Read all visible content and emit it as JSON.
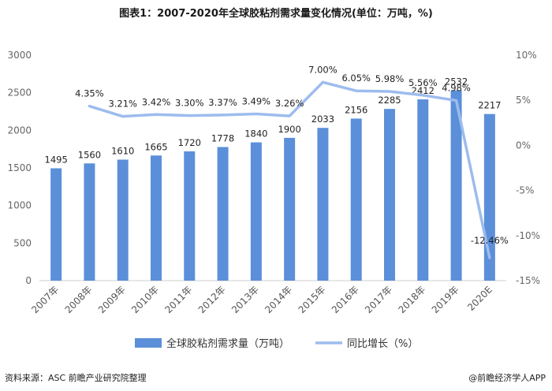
{
  "title": "图表1：2007-2020年全球胶粘剂需求量变化情况(单位：万吨，%)",
  "source": "资料来源：ASC 前瞻产业研究院整理",
  "brand": "@前瞻经济学人APP",
  "chart_data": {
    "type": "bar",
    "categories": [
      "2007年",
      "2008年",
      "2009年",
      "2010年",
      "2011年",
      "2012年",
      "2013年",
      "2014年",
      "2015年",
      "2016年",
      "2017年",
      "2018年",
      "2019年",
      "2020E"
    ],
    "series": [
      {
        "name": "全球胶粘剂需求量（万吨）",
        "type": "bar",
        "axis": "left",
        "values": [
          1495,
          1560,
          1610,
          1665,
          1720,
          1778,
          1840,
          1900,
          2033,
          2156,
          2285,
          2412,
          2532,
          2217
        ],
        "labels": [
          "1495",
          "1560",
          "1610",
          "1665",
          "1720",
          "1778",
          "1840",
          "1900",
          "2033",
          "2156",
          "2285",
          "2412",
          "2532",
          "2217"
        ],
        "color": "#5b8fd9"
      },
      {
        "name": "同比增长（%）",
        "type": "line",
        "axis": "right",
        "values": [
          null,
          4.35,
          3.21,
          3.42,
          3.3,
          3.37,
          3.49,
          3.26,
          7.0,
          6.05,
          5.98,
          5.56,
          4.98,
          -12.46
        ],
        "labels": [
          "",
          "4.35%",
          "3.21%",
          "3.42%",
          "3.30%",
          "3.37%",
          "3.49%",
          "3.26%",
          "7.00%",
          "6.05%",
          "5.98%",
          "5.56%",
          "4.98%",
          "-12.46%"
        ],
        "color": "#9dbcee"
      }
    ],
    "y_left": {
      "min": 0,
      "max": 3000,
      "ticks": [
        "0",
        "500",
        "1000",
        "1500",
        "2000",
        "2500",
        "3000"
      ]
    },
    "y_right": {
      "min": -15,
      "max": 10,
      "ticks": [
        "-15%",
        "-10%",
        "-5%",
        "0%",
        "5%",
        "10%"
      ]
    },
    "legend_position": "bottom",
    "grid": false
  }
}
